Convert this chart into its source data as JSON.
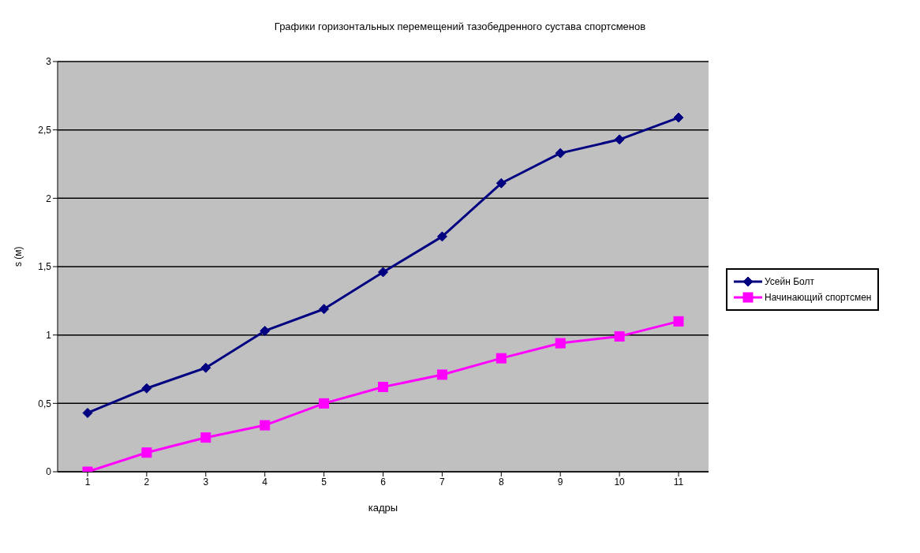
{
  "chart_data": {
    "type": "line",
    "title": "Графики горизонтальных перемещений тазобедренного сустава спортсменов",
    "xlabel": "кадры",
    "ylabel": "s (м)",
    "categories": [
      "1",
      "2",
      "3",
      "4",
      "5",
      "6",
      "7",
      "8",
      "9",
      "10",
      "11"
    ],
    "series": [
      {
        "name": "Усейн Болт",
        "color": "#000080",
        "marker": "diamond",
        "values": [
          0.43,
          0.61,
          0.76,
          1.03,
          1.19,
          1.46,
          1.72,
          2.11,
          2.33,
          2.43,
          2.59
        ]
      },
      {
        "name": "Начинающий спортсмен",
        "color": "#ff00ff",
        "marker": "square",
        "values": [
          0,
          0.14,
          0.25,
          0.34,
          0.5,
          0.62,
          0.71,
          0.83,
          0.94,
          0.99,
          1.1
        ]
      }
    ],
    "ylim": [
      0,
      3
    ],
    "yticks": [
      0,
      {
        "value": 0.5,
        "label": "0,5"
      },
      1,
      {
        "value": 1.5,
        "label": "1,5"
      },
      2,
      {
        "value": 2.5,
        "label": "2,5"
      },
      3
    ],
    "grid": "y",
    "legend": "right"
  }
}
